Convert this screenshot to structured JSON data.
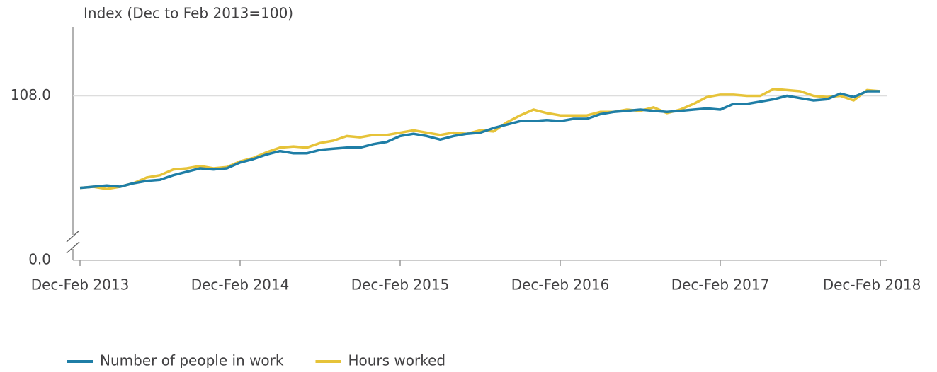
{
  "chart_data": {
    "type": "line",
    "y_label": "Index (Dec to Feb 2013=100)",
    "categories": [
      "Dec-Feb 2013",
      null,
      null,
      null,
      null,
      null,
      null,
      null,
      null,
      null,
      null,
      null,
      "Dec-Feb 2014",
      null,
      null,
      null,
      null,
      null,
      null,
      null,
      null,
      null,
      null,
      null,
      "Dec-Feb 2015",
      null,
      null,
      null,
      null,
      null,
      null,
      null,
      null,
      null,
      null,
      null,
      "Dec-Feb 2016",
      null,
      null,
      null,
      null,
      null,
      null,
      null,
      null,
      null,
      null,
      null,
      "Dec-Feb 2017",
      null,
      null,
      null,
      null,
      null,
      null,
      null,
      null,
      null,
      null,
      null,
      "Dec-Feb 2018"
    ],
    "series": [
      {
        "name": "Number of people in work",
        "color": "#1f7ea6",
        "values": [
          100.0,
          100.1,
          100.2,
          100.1,
          100.4,
          100.6,
          100.7,
          101.1,
          101.4,
          101.7,
          101.6,
          101.7,
          102.2,
          102.5,
          102.9,
          103.2,
          103.0,
          103.0,
          103.3,
          103.4,
          103.5,
          103.5,
          103.8,
          104.0,
          104.5,
          104.7,
          104.5,
          104.2,
          104.5,
          104.7,
          104.8,
          105.2,
          105.5,
          105.8,
          105.8,
          105.9,
          105.8,
          106.0,
          106.0,
          106.4,
          106.6,
          106.7,
          106.8,
          106.7,
          106.6,
          106.7,
          106.8,
          106.9,
          106.8,
          107.3,
          107.3,
          107.5,
          107.7,
          108.0,
          107.8,
          107.6,
          107.7,
          108.2,
          107.9,
          108.4,
          108.4
        ]
      },
      {
        "name": "Hours worked",
        "color": "#e6c339",
        "values": [
          100.0,
          100.1,
          99.9,
          100.1,
          100.4,
          100.9,
          101.1,
          101.6,
          101.7,
          101.9,
          101.7,
          101.8,
          102.3,
          102.6,
          103.1,
          103.5,
          103.6,
          103.5,
          103.9,
          104.1,
          104.5,
          104.4,
          104.6,
          104.6,
          104.8,
          105.0,
          104.8,
          104.6,
          104.8,
          104.7,
          105.0,
          104.9,
          105.7,
          106.3,
          106.8,
          106.5,
          106.3,
          106.3,
          106.3,
          106.6,
          106.6,
          106.8,
          106.7,
          107.0,
          106.5,
          106.8,
          107.3,
          107.9,
          108.1,
          108.1,
          108.0,
          108.0,
          108.6,
          108.5,
          108.4,
          108.0,
          107.9,
          108.0,
          107.6,
          108.5,
          108.4
        ]
      }
    ],
    "ylim": [
      0,
      114
    ],
    "axis_break": {
      "from": 0,
      "to": 93.7
    },
    "yticks": [
      {
        "value": 0,
        "label": "0.0"
      },
      {
        "value": 108,
        "label": "108.0"
      }
    ],
    "grid": true,
    "legend": "bottom"
  }
}
